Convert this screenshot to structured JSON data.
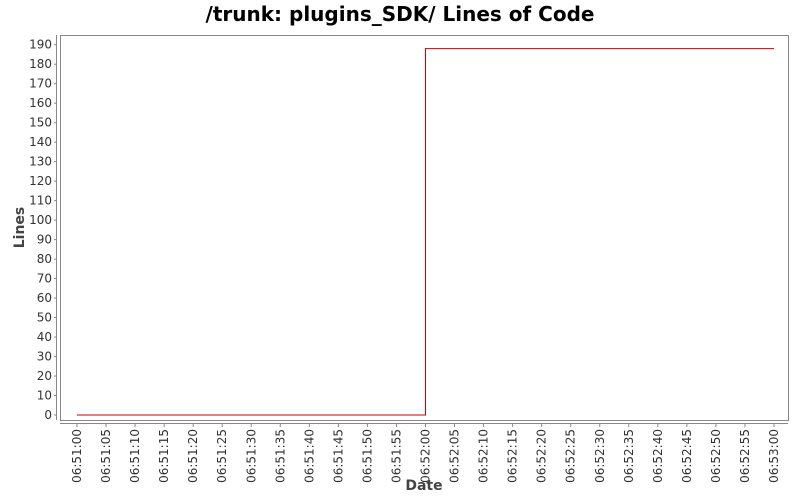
{
  "chart_data": {
    "type": "line",
    "title": "/trunk: plugins_SDK/ Lines of Code",
    "xlabel": "Date",
    "ylabel": "Lines",
    "ylim": [
      0,
      195
    ],
    "y_ticks": [
      0,
      10,
      20,
      30,
      40,
      50,
      60,
      70,
      80,
      90,
      100,
      110,
      120,
      130,
      140,
      150,
      160,
      170,
      180,
      190
    ],
    "categories": [
      "06:51:00",
      "06:51:05",
      "06:51:10",
      "06:51:15",
      "06:51:20",
      "06:51:25",
      "06:51:30",
      "06:51:35",
      "06:51:40",
      "06:51:45",
      "06:51:50",
      "06:51:55",
      "06:52:00",
      "06:52:05",
      "06:52:10",
      "06:52:15",
      "06:52:20",
      "06:52:25",
      "06:52:30",
      "06:52:35",
      "06:52:40",
      "06:52:45",
      "06:52:50",
      "06:52:55",
      "06:53:00"
    ],
    "series": [
      {
        "color": "#cc0000",
        "step": true,
        "points": [
          {
            "x": "06:51:00",
            "y": 0
          },
          {
            "x": "06:52:00",
            "y": 0
          },
          {
            "x": "06:52:00",
            "y": 188
          },
          {
            "x": "06:53:00",
            "y": 188
          }
        ]
      }
    ],
    "grid": false,
    "legend": "none"
  }
}
